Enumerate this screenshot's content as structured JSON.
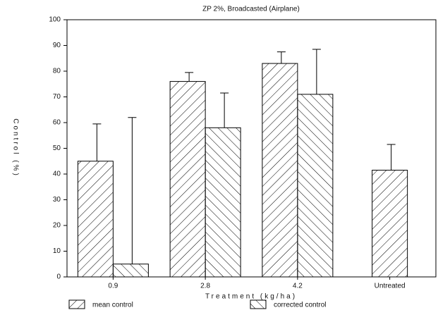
{
  "chart_data": {
    "type": "bar",
    "title": "ZP 2%, Broadcasted (Airplane)",
    "x_label": "Treatment (kg/ha)",
    "y_label": "Control (%)",
    "categories": [
      "0.9",
      "2.8",
      "4.2",
      "Untreated"
    ],
    "series": [
      {
        "name": "mean control",
        "color": "#000000",
        "hatch": "/",
        "values": [
          45,
          76,
          83,
          41.5
        ],
        "errors": [
          14.5,
          3.5,
          4.5,
          10
        ]
      },
      {
        "name": "corrected control",
        "color": "#000000",
        "hatch": "\\",
        "values": [
          5,
          58,
          71,
          null
        ],
        "errors": [
          57,
          13.5,
          17.5,
          null
        ]
      }
    ],
    "ylim": [
      0,
      100
    ],
    "yticks": [
      0,
      10,
      20,
      30,
      40,
      50,
      60,
      70,
      80,
      90,
      100
    ],
    "legend": "bottom"
  }
}
